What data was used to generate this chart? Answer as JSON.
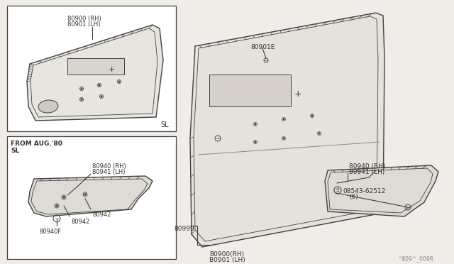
{
  "bg_color": "#f0ede8",
  "line_color": "#404040",
  "text_color": "#303030",
  "title_code": "^809^_009R",
  "annotations": {
    "top_box_label1": "80900 (RH)",
    "top_box_label2": "80901 (LH)",
    "top_box_sl": "SL",
    "bottom_box_header1": "FROM AUG.'80",
    "bottom_box_header2": "SL",
    "bottom_box_label1": "80940 (RH)",
    "bottom_box_label2": "80941 (LH)",
    "bottom_box_label3": "80942",
    "bottom_box_label4": "80942",
    "bottom_box_label5": "80940F",
    "main_label1": "80901E",
    "main_label2": "80999",
    "main_label3": "B0900(RH)",
    "main_label4": "B0901 (LH)",
    "right_label1": "80940 (RH)",
    "right_label2": "80941 (LH)",
    "right_label3": "08543-62512",
    "right_label4": "(6)",
    "screw_symbol": "S"
  }
}
